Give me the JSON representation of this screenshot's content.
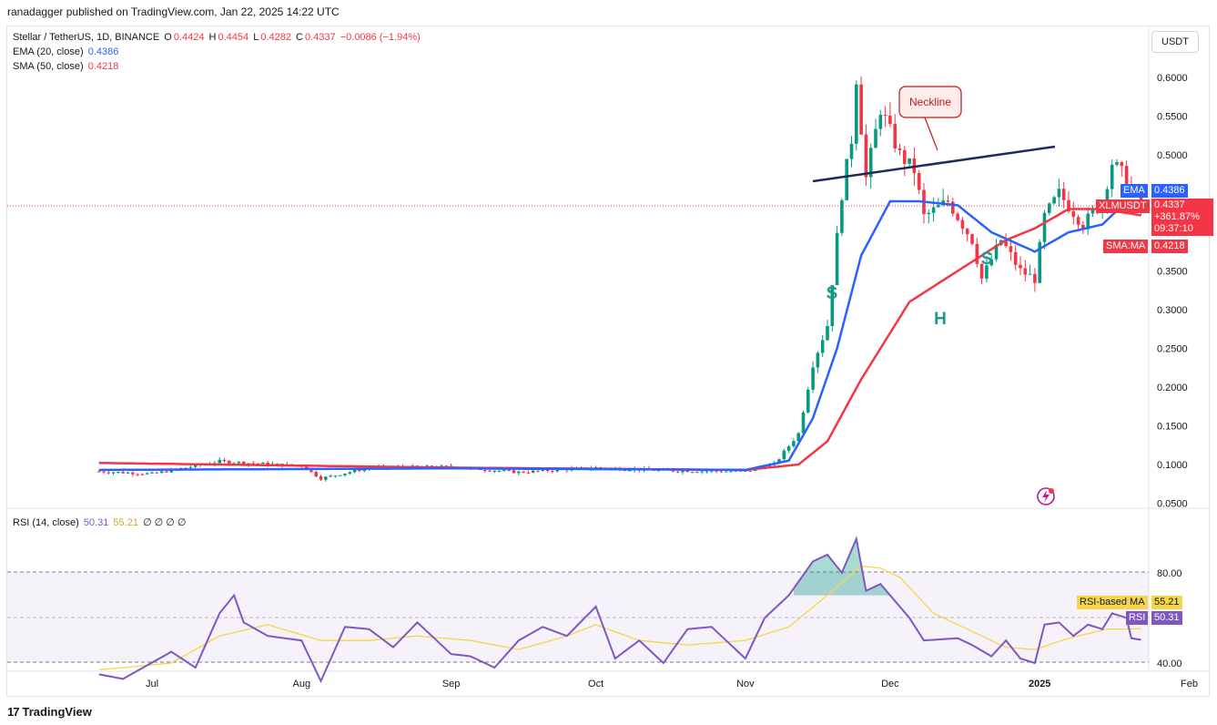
{
  "header": {
    "published": "ranadagger published on TradingView.com, Jan 22, 2025 14:22 UTC"
  },
  "legend": {
    "symbol": "Stellar / TetherUS, 1D, BINANCE",
    "o_label": "O",
    "o_value": "0.4424",
    "h_label": "H",
    "h_value": "0.4454",
    "l_label": "L",
    "l_value": "0.4282",
    "c_label": "C",
    "c_value": "0.4337",
    "change": "−0.0086 (−1.94%)",
    "ema_label": "EMA (20, close)",
    "ema_value": "0.4386",
    "sma_label": "SMA (50, close)",
    "sma_value": "0.4218"
  },
  "price_axis": {
    "unit": "USDT",
    "ticks": [
      "0.6000",
      "0.5500",
      "0.5000",
      "0.3500",
      "0.3000",
      "0.2500",
      "0.2000",
      "0.1500",
      "0.1000",
      "0.0500"
    ],
    "tick_values": [
      0.6,
      0.55,
      0.5,
      0.35,
      0.3,
      0.25,
      0.2,
      0.15,
      0.1,
      0.05
    ]
  },
  "tags": {
    "ema_name": "EMA",
    "ema_value": "0.4386",
    "symbol_name": "XLMUSDT",
    "last_price": "0.4337",
    "pct": "+361.87%",
    "countdown": "09:37:10",
    "sma_name": "SMA:MA",
    "sma_value": "0.4218",
    "rsi_ma_name": "RSI-based MA",
    "rsi_ma_value": "55.21",
    "rsi_name": "RSI",
    "rsi_value": "50.31"
  },
  "rsi_legend": {
    "label": "RSI (14, close)",
    "rsi": "50.31",
    "ma": "55.21",
    "extra": "∅ ∅ ∅ ∅"
  },
  "rsi_axis": {
    "ticks": [
      "80.00",
      "60.00",
      "40.00"
    ],
    "tick_values": [
      80,
      60,
      40
    ]
  },
  "time_axis": {
    "labels": [
      "Jul",
      "Aug",
      "Sep",
      "Oct",
      "Nov",
      "Dec",
      "2025",
      "Feb"
    ]
  },
  "annotations": {
    "neckline": "Neckline",
    "left_shoulder": "S",
    "head": "H",
    "right_shoulder": "S"
  },
  "footer": {
    "brand": "TradingView",
    "logo": "17"
  },
  "colors": {
    "up": "#089981",
    "down": "#f23645",
    "ema": "#2962ff",
    "sma": "#f23645",
    "rsi": "#7e57c2",
    "rsi_ma": "#f7d54a",
    "pattern": "#1b998b",
    "neckline": "#1e2a5a"
  },
  "chart_data": [
    {
      "type": "line",
      "title": "Stellar / TetherUS, 1D, BINANCE",
      "ylabel": "USDT",
      "ylim": [
        0.05,
        0.63
      ],
      "x_labels": [
        "Jul",
        "Aug",
        "Sep",
        "Oct",
        "Nov",
        "Dec",
        "2025",
        "Feb"
      ],
      "series": [
        {
          "name": "XLMUSDT",
          "points": [
            [
              "Jun 20",
              0.091
            ],
            [
              "Jul 1",
              0.088
            ],
            [
              "Jul 15",
              0.104
            ],
            [
              "Aug 1",
              0.098
            ],
            [
              "Aug 5",
              0.082
            ],
            [
              "Aug 15",
              0.096
            ],
            [
              "Sep 1",
              0.097
            ],
            [
              "Sep 15",
              0.09
            ],
            [
              "Oct 1",
              0.096
            ],
            [
              "Oct 15",
              0.092
            ],
            [
              "Nov 1",
              0.091
            ],
            [
              "Nov 7",
              0.1
            ],
            [
              "Nov 12",
              0.14
            ],
            [
              "Nov 15",
              0.23
            ],
            [
              "Nov 18",
              0.28
            ],
            [
              "Nov 21",
              0.45
            ],
            [
              "Nov 23",
              0.52
            ],
            [
              "Nov 24",
              0.6
            ],
            [
              "Nov 26",
              0.47
            ],
            [
              "Nov 29",
              0.56
            ],
            [
              "Dec 3",
              0.5
            ],
            [
              "Dec 6",
              0.48
            ],
            [
              "Dec 8",
              0.42
            ],
            [
              "Dec 13",
              0.44
            ],
            [
              "Dec 18",
              0.39
            ],
            [
              "Dec 20",
              0.34
            ],
            [
              "Dec 24",
              0.39
            ],
            [
              "Dec 28",
              0.35
            ],
            [
              "Dec 31",
              0.34
            ],
            [
              "Jan 2",
              0.42
            ],
            [
              "Jan 5",
              0.45
            ],
            [
              "Jan 10",
              0.41
            ],
            [
              "Jan 14",
              0.44
            ],
            [
              "Jan 16",
              0.49
            ],
            [
              "Jan 19",
              0.47
            ],
            [
              "Jan 21",
              0.442
            ],
            [
              "Jan 22",
              0.434
            ]
          ]
        },
        {
          "name": "EMA (20, close)",
          "points": [
            [
              "Jun 20",
              0.093
            ],
            [
              "Sep 1",
              0.095
            ],
            [
              "Nov 1",
              0.093
            ],
            [
              "Nov 10",
              0.105
            ],
            [
              "Nov 15",
              0.16
            ],
            [
              "Nov 20",
              0.25
            ],
            [
              "Nov 25",
              0.37
            ],
            [
              "Dec 1",
              0.44
            ],
            [
              "Dec 7",
              0.44
            ],
            [
              "Dec 15",
              0.435
            ],
            [
              "Dec 22",
              0.4
            ],
            [
              "Dec 31",
              0.375
            ],
            [
              "Jan 7",
              0.4
            ],
            [
              "Jan 14",
              0.41
            ],
            [
              "Jan 19",
              0.44
            ],
            [
              "Jan 22",
              0.4386
            ]
          ]
        },
        {
          "name": "SMA (50, close)",
          "points": [
            [
              "Jun 20",
              0.102
            ],
            [
              "Sep 1",
              0.096
            ],
            [
              "Nov 1",
              0.093
            ],
            [
              "Nov 12",
              0.1
            ],
            [
              "Nov 18",
              0.13
            ],
            [
              "Nov 25",
              0.21
            ],
            [
              "Dec 5",
              0.31
            ],
            [
              "Dec 15",
              0.35
            ],
            [
              "Dec 25",
              0.39
            ],
            [
              "Dec 31",
              0.405
            ],
            [
              "Jan 7",
              0.43
            ],
            [
              "Jan 14",
              0.43
            ],
            [
              "Jan 22",
              0.4218
            ]
          ]
        }
      ]
    },
    {
      "type": "line",
      "title": "RSI (14, close)",
      "ylim": [
        26,
        98
      ],
      "x_labels": [
        "Jul",
        "Aug",
        "Sep",
        "Oct",
        "Nov",
        "Dec",
        "2025",
        "Feb"
      ],
      "series": [
        {
          "name": "RSI",
          "points": [
            [
              "Jun 20",
              35
            ],
            [
              "Jun 25",
              33
            ],
            [
              "Jul 5",
              45
            ],
            [
              "Jul 10",
              38
            ],
            [
              "Jul 15",
              62
            ],
            [
              "Jul 18",
              70
            ],
            [
              "Jul 20",
              58
            ],
            [
              "Jul 25",
              52
            ],
            [
              "Aug 1",
              50
            ],
            [
              "Aug 5",
              32
            ],
            [
              "Aug 10",
              56
            ],
            [
              "Aug 15",
              55
            ],
            [
              "Aug 20",
              47
            ],
            [
              "Aug 25",
              58
            ],
            [
              "Sep 1",
              44
            ],
            [
              "Sep 5",
              43
            ],
            [
              "Sep 10",
              38
            ],
            [
              "Sep 15",
              50
            ],
            [
              "Sep 20",
              56
            ],
            [
              "Sep 25",
              52
            ],
            [
              "Oct 1",
              65
            ],
            [
              "Oct 5",
              42
            ],
            [
              "Oct 10",
              50
            ],
            [
              "Oct 15",
              40
            ],
            [
              "Oct 20",
              55
            ],
            [
              "Oct 25",
              56
            ],
            [
              "Nov 1",
              42
            ],
            [
              "Nov 5",
              60
            ],
            [
              "Nov 10",
              70
            ],
            [
              "Nov 15",
              85
            ],
            [
              "Nov 18",
              88
            ],
            [
              "Nov 21",
              80
            ],
            [
              "Nov 24",
              95
            ],
            [
              "Nov 26",
              72
            ],
            [
              "Nov 29",
              75
            ],
            [
              "Dec 3",
              65
            ],
            [
              "Dec 5",
              60
            ],
            [
              "Dec 8",
              50
            ],
            [
              "Dec 15",
              51
            ],
            [
              "Dec 18",
              48
            ],
            [
              "Dec 22",
              43
            ],
            [
              "Dec 25",
              50
            ],
            [
              "Dec 28",
              42
            ],
            [
              "Dec 31",
              40
            ],
            [
              "Jan 2",
              57
            ],
            [
              "Jan 5",
              58
            ],
            [
              "Jan 8",
              52
            ],
            [
              "Jan 11",
              57
            ],
            [
              "Jan 14",
              55
            ],
            [
              "Jan 16",
              62
            ],
            [
              "Jan 19",
              60
            ],
            [
              "Jan 20",
              51
            ],
            [
              "Jan 22",
              50.31
            ]
          ]
        },
        {
          "name": "RSI-based MA",
          "points": [
            [
              "Jun 20",
              37
            ],
            [
              "Jul 5",
              40
            ],
            [
              "Jul 15",
              52
            ],
            [
              "Jul 25",
              57
            ],
            [
              "Aug 5",
              50
            ],
            [
              "Aug 15",
              50
            ],
            [
              "Aug 25",
              52
            ],
            [
              "Sep 5",
              50
            ],
            [
              "Sep 15",
              46
            ],
            [
              "Sep 25",
              52
            ],
            [
              "Oct 1",
              57
            ],
            [
              "Oct 10",
              50
            ],
            [
              "Oct 20",
              48
            ],
            [
              "Nov 1",
              50
            ],
            [
              "Nov 10",
              56
            ],
            [
              "Nov 18",
              70
            ],
            [
              "Nov 25",
              83
            ],
            [
              "Nov 29",
              82
            ],
            [
              "Dec 3",
              78
            ],
            [
              "Dec 10",
              62
            ],
            [
              "Dec 18",
              54
            ],
            [
              "Dec 25",
              47
            ],
            [
              "Dec 31",
              46
            ],
            [
              "Jan 7",
              51
            ],
            [
              "Jan 15",
              55
            ],
            [
              "Jan 22",
              55.21
            ]
          ]
        }
      ]
    }
  ]
}
